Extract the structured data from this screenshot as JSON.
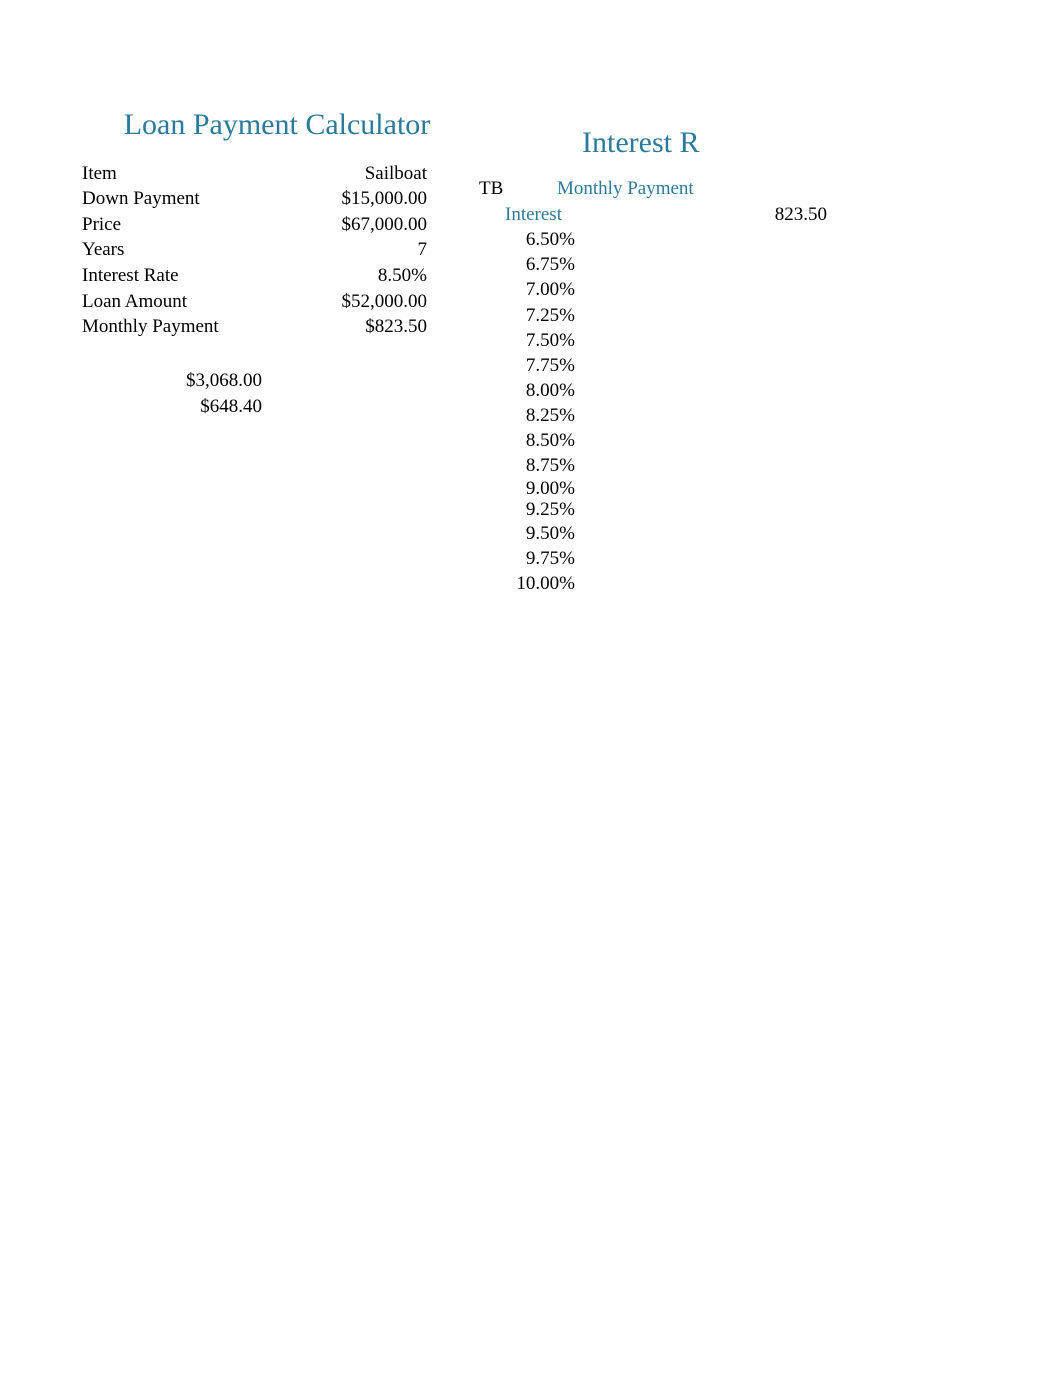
{
  "colors": {
    "accent": "#2b7a9b",
    "text": "#000000",
    "background": "#ffffff"
  },
  "leftSection": {
    "title": "Loan Payment Calculator",
    "rows": [
      {
        "label": "Item",
        "value": "Sailboat"
      },
      {
        "label": "Down Payment",
        "value": "$15,000.00"
      },
      {
        "label": "Price",
        "value": "$67,000.00"
      },
      {
        "label": "Years",
        "value": "7"
      },
      {
        "label": "Interest Rate",
        "value": "8.50%"
      },
      {
        "label": "Loan Amount",
        "value": "$52,000.00"
      },
      {
        "label": "Monthly Payment",
        "value": "$823.50"
      }
    ],
    "extraValues": [
      "$3,068.00",
      "$648.40"
    ]
  },
  "rightSection": {
    "title": "Interest R",
    "tbLabel": "TB",
    "monthlyPaymentLabel": "Monthly Payment",
    "interestLabel": "Interest",
    "monthlyPaymentValue": "823.50",
    "rates": [
      "6.50%",
      "6.75%",
      "7.00%",
      "7.25%",
      "7.50%",
      "7.75%",
      "8.00%",
      "8.25%",
      "8.50%",
      "8.75%",
      "9.00%",
      "9.25%",
      "9.50%",
      "9.75%",
      "10.00%"
    ]
  }
}
